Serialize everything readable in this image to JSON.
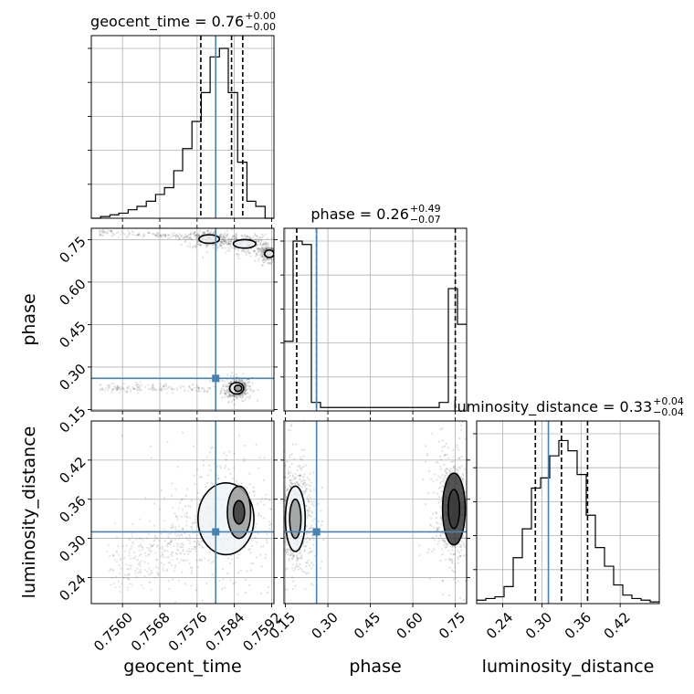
{
  "chart_data": {
    "type": "corner",
    "parameters": [
      "geocent_time",
      "phase",
      "luminosity_distance"
    ],
    "truth_color": "#4682b4",
    "truths": {
      "geocent_time": 0.758,
      "phase": 0.26,
      "luminosity_distance": 0.31
    },
    "titles": [
      {
        "param": "geocent_time",
        "text": "geocent_time = 0.76",
        "sup": "+0.00",
        "sub": "−0.00"
      },
      {
        "param": "phase",
        "text": "phase = 0.26",
        "sup": "+0.49",
        "sub": "−0.07"
      },
      {
        "param": "luminosity_distance",
        "text": "luminosity_distance = 0.33",
        "sup": "+0.04",
        "sub": "−0.04"
      }
    ],
    "axes": {
      "geocent_time": {
        "label": "geocent_time",
        "range": [
          0.75533,
          0.75925
        ],
        "ticks": [
          0.756,
          0.7568,
          0.7576,
          0.7584,
          0.7592
        ],
        "tick_labels": [
          "0.7560",
          "0.7568",
          "0.7576",
          "0.7584",
          "0.7592"
        ]
      },
      "phase": {
        "label": "phase",
        "range": [
          0.145,
          0.79
        ],
        "ticks": [
          0.15,
          0.3,
          0.45,
          0.6,
          0.75
        ],
        "tick_labels": [
          "0.15",
          "0.30",
          "0.45",
          "0.60",
          "0.75"
        ]
      },
      "luminosity_distance": {
        "label": "luminosity_distance",
        "range": [
          0.2,
          0.48
        ],
        "ticks": [
          0.24,
          0.3,
          0.36,
          0.42
        ],
        "tick_labels": [
          "0.24",
          "0.30",
          "0.36",
          "0.42"
        ]
      }
    },
    "histograms": {
      "geocent_time": {
        "bin_edges": [
          0.75533,
          0.75553,
          0.75573,
          0.75592,
          0.75612,
          0.75631,
          0.75651,
          0.75671,
          0.7569,
          0.7571,
          0.75729,
          0.75749,
          0.75769,
          0.75788,
          0.75808,
          0.75827,
          0.75847,
          0.75867,
          0.75886,
          0.75906,
          0.75925
        ],
        "counts": [
          0.0,
          0.01,
          0.02,
          0.03,
          0.05,
          0.07,
          0.1,
          0.14,
          0.18,
          0.28,
          0.41,
          0.57,
          0.74,
          0.95,
          1.0,
          0.74,
          0.33,
          0.1,
          0.07,
          0.0
        ],
        "quantiles": [
          0.75768,
          0.75834,
          0.75858
        ]
      },
      "phase": {
        "bin_edges": [
          0.145,
          0.17725,
          0.2095,
          0.24175,
          0.274,
          0.30625,
          0.3385,
          0.37075,
          0.403,
          0.43525,
          0.4675,
          0.49975,
          0.532,
          0.56425,
          0.5965,
          0.62875,
          0.661,
          0.69325,
          0.7255,
          0.75775,
          0.79
        ],
        "counts": [
          0.41,
          1.0,
          0.98,
          0.05,
          0.02,
          0.02,
          0.02,
          0.02,
          0.02,
          0.02,
          0.02,
          0.02,
          0.02,
          0.02,
          0.02,
          0.02,
          0.02,
          0.05,
          0.72,
          0.51
        ],
        "quantiles": [
          0.19,
          0.26,
          0.75
        ]
      },
      "luminosity_distance": {
        "bin_edges": [
          0.2,
          0.214,
          0.228,
          0.242,
          0.256,
          0.27,
          0.284,
          0.298,
          0.312,
          0.326,
          0.34,
          0.354,
          0.368,
          0.382,
          0.396,
          0.41,
          0.424,
          0.438,
          0.452,
          0.466,
          0.48
        ],
        "counts": [
          0.02,
          0.03,
          0.04,
          0.1,
          0.27,
          0.44,
          0.68,
          0.74,
          0.87,
          0.96,
          0.9,
          0.76,
          0.52,
          0.33,
          0.22,
          0.11,
          0.05,
          0.03,
          0.02,
          0.01
        ],
        "quantiles": [
          0.29,
          0.33,
          0.37
        ]
      }
    },
    "contours": {
      "phase_vs_geocent_time": [
        {
          "cx": 0.75845,
          "cy": 0.225,
          "rx": 0.00015,
          "ry": 0.02
        },
        {
          "cx": 0.75848,
          "cy": 0.225,
          "rx": 8e-05,
          "ry": 0.011
        },
        {
          "cx": 0.75786,
          "cy": 0.752,
          "rx": 0.00022,
          "ry": 0.015
        },
        {
          "cx": 0.75862,
          "cy": 0.735,
          "rx": 0.00024,
          "ry": 0.015
        },
        {
          "cx": 0.75915,
          "cy": 0.7,
          "rx": 0.0001,
          "ry": 0.013
        }
      ],
      "luminosity_distance_vs_geocent_time": [
        {
          "cx": 0.75822,
          "cy": 0.33,
          "rx": 0.0006,
          "ry": 0.055
        },
        {
          "cx": 0.7585,
          "cy": 0.34,
          "rx": 0.00025,
          "ry": 0.04
        },
        {
          "cx": 0.7585,
          "cy": 0.34,
          "rx": 0.00012,
          "ry": 0.018
        }
      ],
      "luminosity_distance_vs_phase": [
        {
          "cx": 0.185,
          "cy": 0.33,
          "rx": 0.035,
          "ry": 0.05
        },
        {
          "cx": 0.185,
          "cy": 0.33,
          "rx": 0.02,
          "ry": 0.03
        },
        {
          "cx": 0.745,
          "cy": 0.345,
          "rx": 0.04,
          "ry": 0.055
        },
        {
          "cx": 0.745,
          "cy": 0.345,
          "rx": 0.02,
          "ry": 0.03
        }
      ]
    }
  }
}
